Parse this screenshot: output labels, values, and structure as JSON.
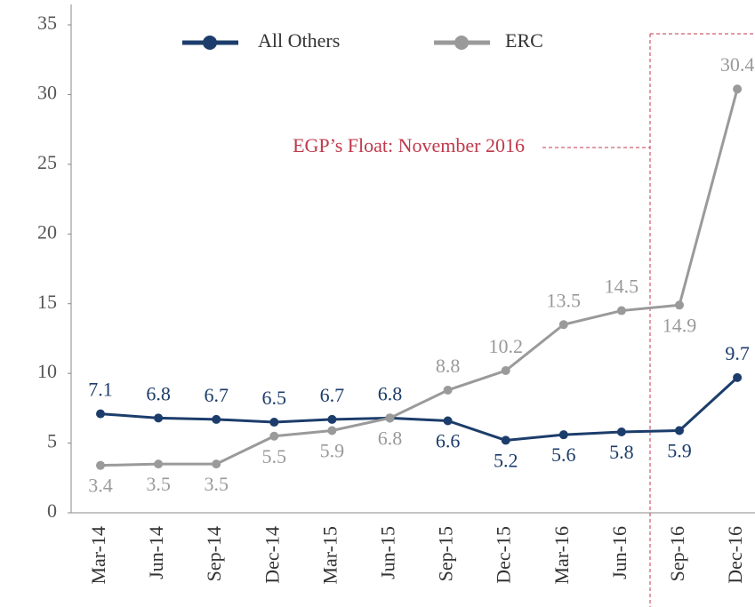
{
  "chart_data": {
    "type": "line",
    "categories": [
      "Mar-14",
      "Jun-14",
      "Sep-14",
      "Dec-14",
      "Mar-15",
      "Jun-15",
      "Sep-15",
      "Dec-15",
      "Mar-16",
      "Jun-16",
      "Sep-16",
      "Dec-16"
    ],
    "series": [
      {
        "name": "All Others",
        "color": "#1c3d6b",
        "values": [
          7.1,
          6.8,
          6.7,
          6.5,
          6.7,
          6.8,
          6.6,
          5.2,
          5.6,
          5.8,
          5.9,
          9.7
        ]
      },
      {
        "name": "ERC",
        "color": "#9a9a9a",
        "values": [
          3.4,
          3.5,
          3.5,
          5.5,
          5.9,
          6.8,
          8.8,
          10.2,
          13.5,
          14.5,
          14.9,
          30.4
        ]
      }
    ],
    "ylim": [
      0,
      35
    ],
    "yticks": [
      0,
      5,
      10,
      15,
      20,
      25,
      30,
      35
    ],
    "annotation": "EGP’s Float: November 2016",
    "annotation_color": "#c0394b"
  }
}
